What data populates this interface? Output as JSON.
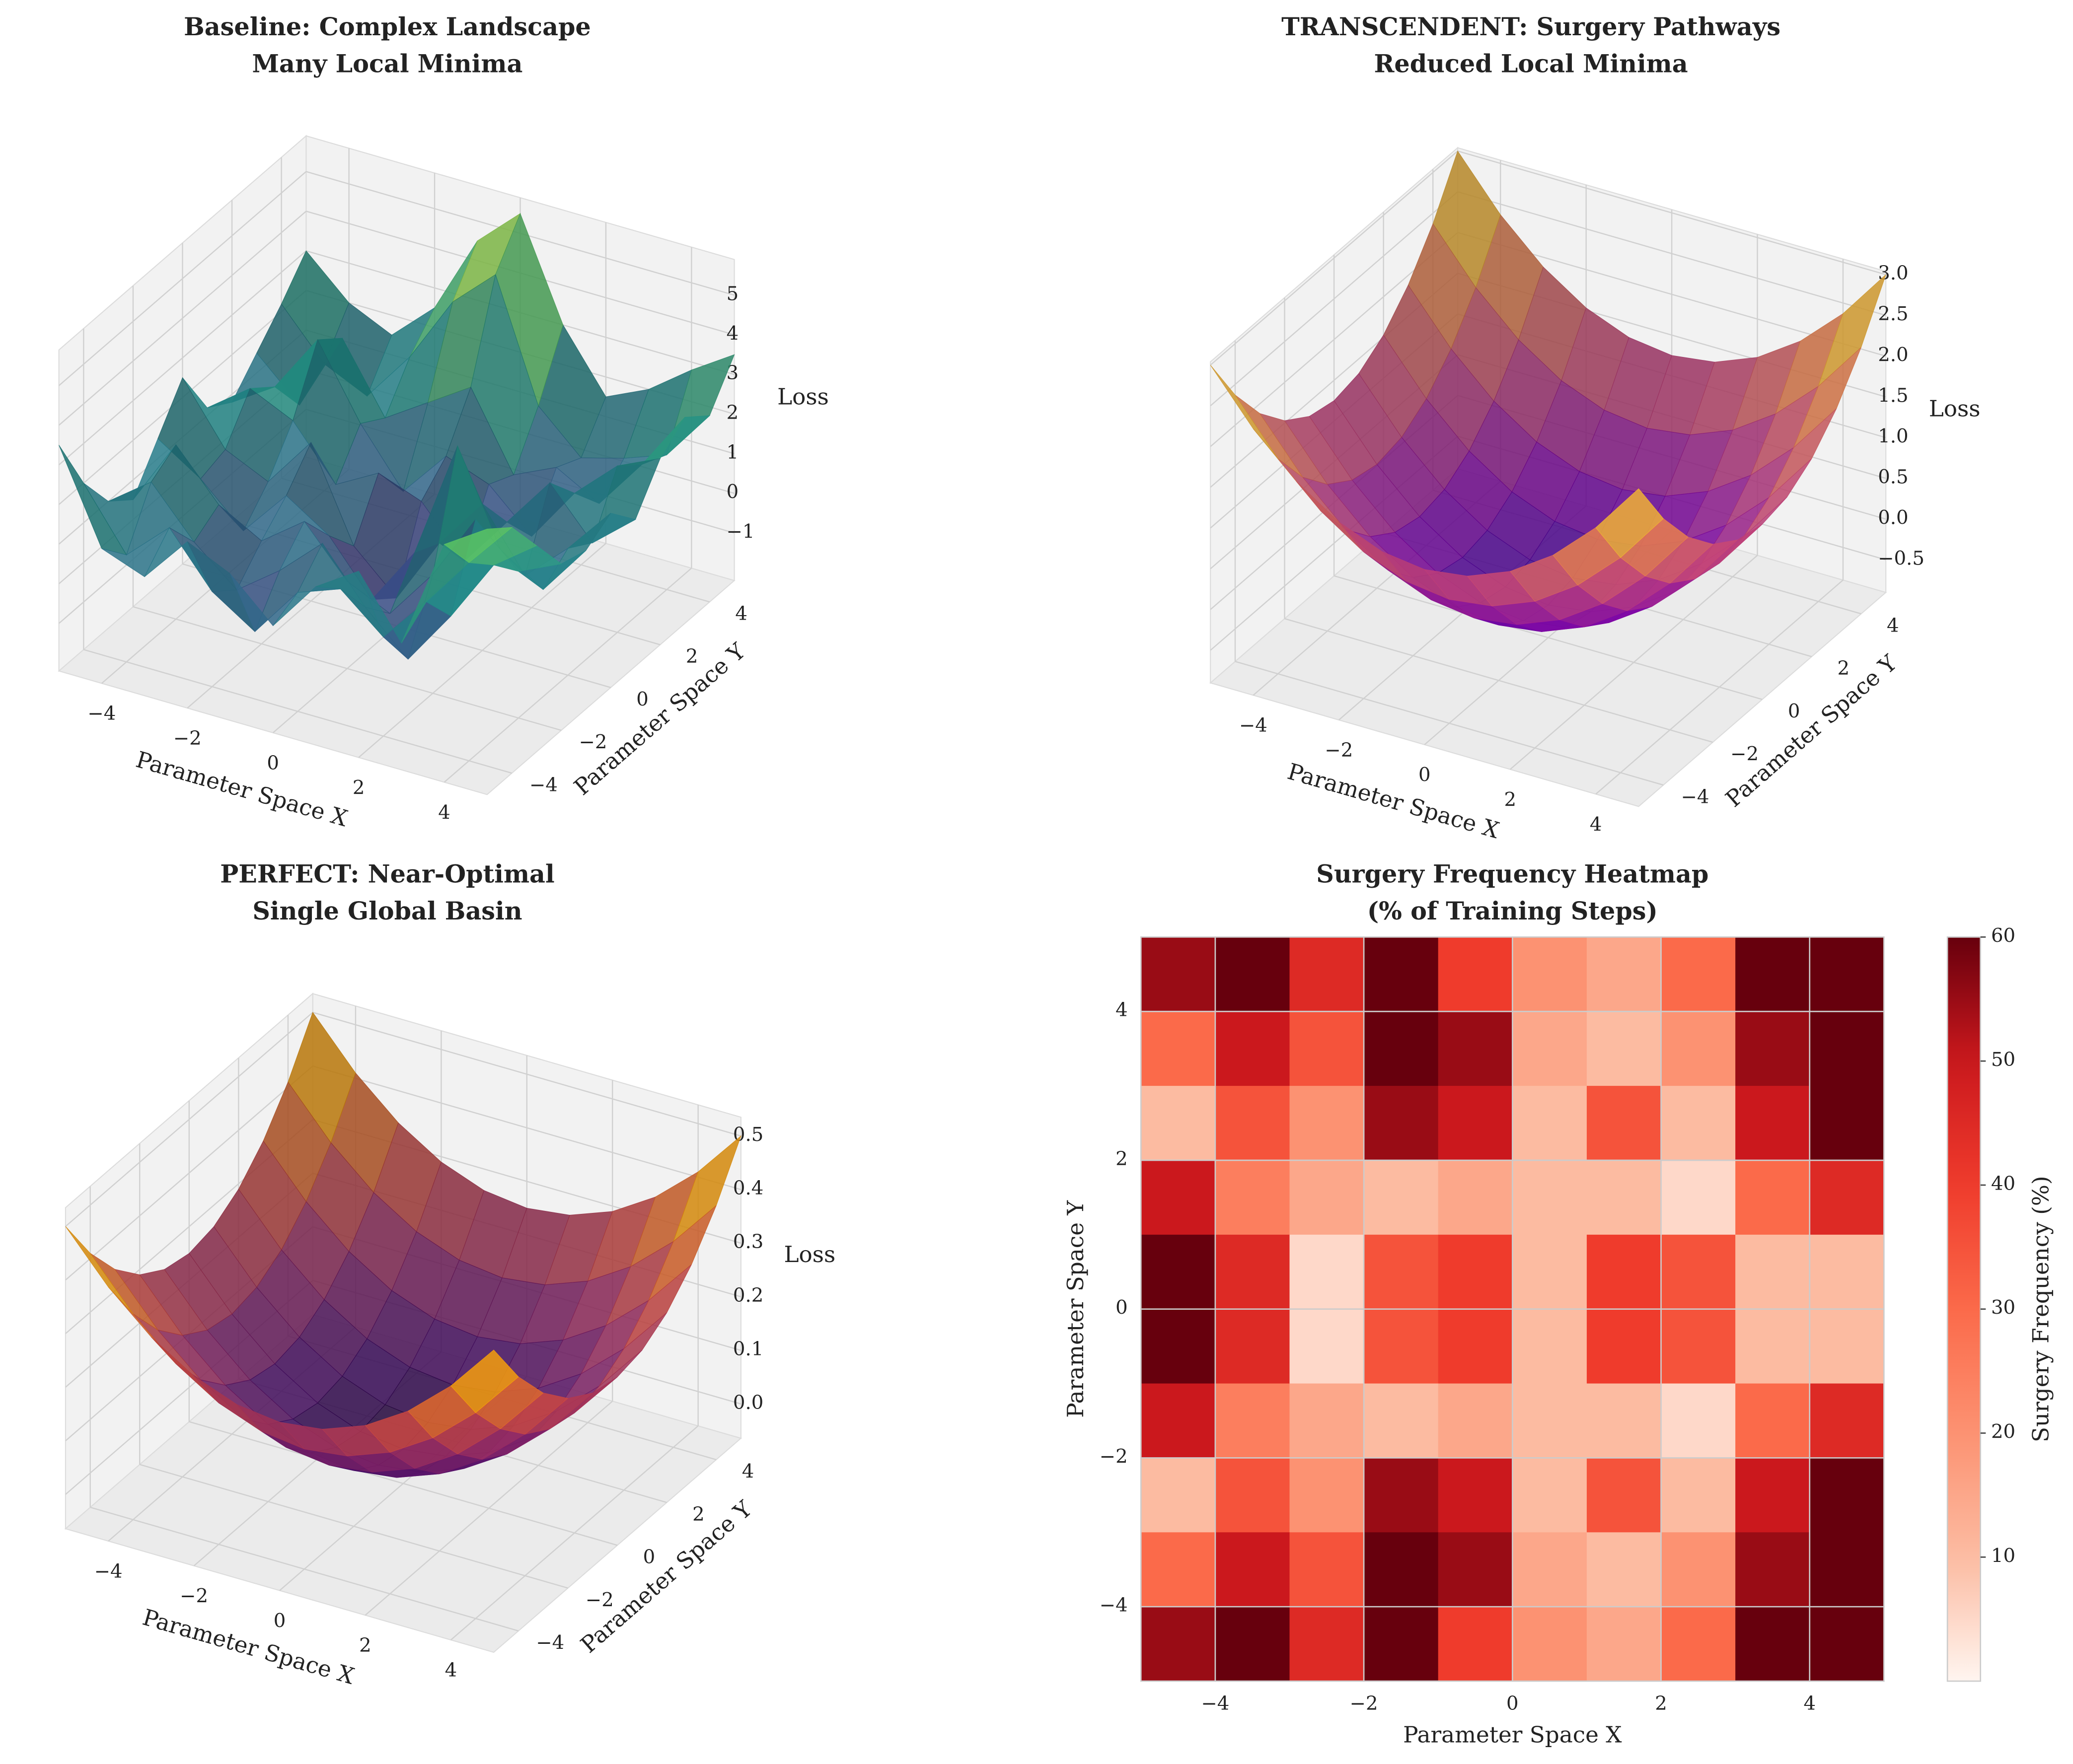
{
  "chart_data": [
    {
      "type": "surface3d",
      "title": [
        "Baseline: Complex Landscape",
        "Many Local Minima"
      ],
      "xlabel": "Parameter Space X",
      "ylabel": "Parameter Space Y",
      "zlabel": "Loss",
      "colormap": "viridis",
      "x": [
        -5,
        -4,
        -3,
        -2,
        -1,
        0,
        1,
        2,
        3,
        4,
        5
      ],
      "y": [
        -5,
        -4,
        -3,
        -2,
        -1,
        0,
        1,
        2,
        3,
        4,
        5
      ],
      "z": [
        [
          3.5,
          1.2,
          0.8,
          2.0,
          1.5,
          0.5,
          1.8,
          2.5,
          1.0,
          3.8,
          4.5
        ],
        [
          2.0,
          0.5,
          1.5,
          0.2,
          -0.5,
          0.8,
          1.2,
          0.3,
          1.5,
          2.8,
          4.0
        ],
        [
          1.0,
          1.8,
          0.6,
          -0.3,
          0.5,
          1.5,
          0.2,
          -0.8,
          0.6,
          2.2,
          3.0
        ],
        [
          0.5,
          2.2,
          1.0,
          0.4,
          1.2,
          0.0,
          -0.5,
          0.8,
          2.5,
          1.5,
          2.0
        ],
        [
          1.5,
          0.8,
          -0.2,
          1.0,
          0.3,
          -1.0,
          0.5,
          3.5,
          1.2,
          0.5,
          1.8
        ],
        [
          2.5,
          1.0,
          0.5,
          1.8,
          -0.5,
          -1.5,
          0.2,
          1.5,
          0.0,
          1.0,
          2.2
        ],
        [
          1.2,
          2.0,
          1.5,
          0.2,
          0.8,
          0.4,
          -0.8,
          0.5,
          1.8,
          0.6,
          1.5
        ],
        [
          0.8,
          1.5,
          3.0,
          1.2,
          -0.2,
          1.0,
          0.6,
          -0.4,
          1.0,
          2.0,
          2.5
        ],
        [
          1.5,
          0.5,
          2.5,
          0.8,
          1.5,
          2.2,
          0.3,
          0.8,
          0.2,
          1.5,
          3.0
        ],
        [
          2.2,
          1.0,
          0.5,
          1.8,
          3.5,
          4.5,
          1.5,
          0.5,
          0.8,
          1.2,
          2.5
        ],
        [
          3.0,
          2.0,
          1.5,
          2.5,
          4.5,
          5.5,
          3.0,
          1.5,
          2.0,
          2.8,
          3.5
        ]
      ],
      "xlim": [
        -5,
        5
      ],
      "ylim": [
        -5,
        5
      ],
      "zlim": [
        -2.2,
        5.9
      ],
      "xticks": [
        {
          "value": -4,
          "label": "−4"
        },
        {
          "value": -2,
          "label": "−2"
        },
        0,
        2,
        4
      ],
      "yticks": [
        {
          "value": -4,
          "label": "−4"
        },
        {
          "value": -2,
          "label": "−2"
        },
        0,
        2,
        4
      ],
      "zticks": [
        {
          "value": -1,
          "label": "−1"
        },
        0,
        1,
        2,
        3,
        4,
        5
      ]
    },
    {
      "type": "surface3d",
      "title": [
        "TRANSCENDENT: Surgery Pathways",
        "Reduced Local Minima"
      ],
      "xlabel": "Parameter Space X",
      "ylabel": "Parameter Space Y",
      "zlabel": "Loss",
      "colormap": "plasma",
      "x": [
        -5,
        -4,
        -3,
        -2,
        -1,
        0,
        1,
        2,
        3,
        4,
        5
      ],
      "y": [
        -5,
        -4,
        -3,
        -2,
        -1,
        0,
        1,
        2,
        3,
        4,
        5
      ],
      "z": [
        [
          3.0,
          2.37,
          1.88,
          1.53,
          1.32,
          1.25,
          1.32,
          1.53,
          1.88,
          2.37,
          3.0
        ],
        [
          2.37,
          1.74,
          1.25,
          0.9,
          0.69,
          0.62,
          0.69,
          0.9,
          1.25,
          1.74,
          2.37
        ],
        [
          1.88,
          1.25,
          0.76,
          0.41,
          0.2,
          0.13,
          0.2,
          0.41,
          0.76,
          1.25,
          1.88
        ],
        [
          1.53,
          0.9,
          0.41,
          0.06,
          -0.15,
          -0.22,
          -0.15,
          0.06,
          0.41,
          0.9,
          1.53
        ],
        [
          1.32,
          0.69,
          0.2,
          -0.15,
          -0.36,
          -0.43,
          -0.36,
          -0.15,
          0.2,
          0.69,
          1.32
        ],
        [
          1.25,
          0.62,
          0.13,
          -0.22,
          -0.43,
          -0.5,
          -0.43,
          -0.22,
          0.13,
          0.62,
          1.25
        ],
        [
          1.32,
          0.69,
          0.2,
          -0.15,
          -0.36,
          -0.43,
          -0.36,
          -0.15,
          0.2,
          0.69,
          1.32
        ],
        [
          1.53,
          0.9,
          0.41,
          0.06,
          -0.15,
          -0.22,
          -0.15,
          0.06,
          0.41,
          0.9,
          1.53
        ],
        [
          1.88,
          1.25,
          0.76,
          0.41,
          0.2,
          0.13,
          0.2,
          0.41,
          0.76,
          1.25,
          1.88
        ],
        [
          2.37,
          1.74,
          1.25,
          0.9,
          0.69,
          0.62,
          0.69,
          0.9,
          1.25,
          1.74,
          2.37
        ],
        [
          3.0,
          2.37,
          1.88,
          1.53,
          1.32,
          1.25,
          1.32,
          1.53,
          1.88,
          2.37,
          3.0
        ]
      ],
      "xlim": [
        -5,
        5
      ],
      "ylim": [
        -5,
        5
      ],
      "zlim": [
        -0.9,
        3.04
      ],
      "xticks": [
        {
          "value": -4,
          "label": "−4"
        },
        {
          "value": -2,
          "label": "−2"
        },
        0,
        2,
        4
      ],
      "yticks": [
        {
          "value": -4,
          "label": "−4"
        },
        {
          "value": -2,
          "label": "−2"
        },
        0,
        2,
        4
      ],
      "zticks": [
        {
          "value": -0.5,
          "label": "−0.5"
        },
        {
          "value": 0,
          "label": "0.0"
        },
        0.5,
        {
          "value": 1,
          "label": "1.0"
        },
        1.5,
        {
          "value": 2,
          "label": "2.0"
        },
        2.5,
        {
          "value": 3,
          "label": "3.0"
        }
      ]
    },
    {
      "type": "surface3d",
      "title": [
        "PERFECT: Near-Optimal",
        "Single Global Basin"
      ],
      "xlabel": "Parameter Space X",
      "ylabel": "Parameter Space Y",
      "zlabel": "Loss",
      "colormap": "inferno",
      "x": [
        -5,
        -4,
        -3,
        -2,
        -1,
        0,
        1,
        2,
        3,
        4,
        5
      ],
      "y": [
        -5,
        -4,
        -3,
        -2,
        -1,
        0,
        1,
        2,
        3,
        4,
        5
      ],
      "z": [
        [
          0.5,
          0.41,
          0.34,
          0.29,
          0.26,
          0.25,
          0.26,
          0.29,
          0.34,
          0.41,
          0.5
        ],
        [
          0.41,
          0.32,
          0.25,
          0.2,
          0.17,
          0.16,
          0.17,
          0.2,
          0.25,
          0.32,
          0.41
        ],
        [
          0.34,
          0.25,
          0.18,
          0.13,
          0.1,
          0.09,
          0.1,
          0.13,
          0.18,
          0.25,
          0.34
        ],
        [
          0.29,
          0.2,
          0.13,
          0.08,
          0.05,
          0.04,
          0.05,
          0.08,
          0.13,
          0.2,
          0.29
        ],
        [
          0.26,
          0.17,
          0.1,
          0.05,
          0.02,
          0.01,
          0.02,
          0.05,
          0.1,
          0.17,
          0.26
        ],
        [
          0.25,
          0.16,
          0.09,
          0.04,
          0.01,
          0,
          0.01,
          0.04,
          0.09,
          0.16,
          0.25
        ],
        [
          0.26,
          0.17,
          0.1,
          0.05,
          0.02,
          0.01,
          0.02,
          0.05,
          0.1,
          0.17,
          0.26
        ],
        [
          0.29,
          0.2,
          0.13,
          0.08,
          0.05,
          0.04,
          0.05,
          0.08,
          0.13,
          0.2,
          0.29
        ],
        [
          0.34,
          0.25,
          0.18,
          0.13,
          0.1,
          0.09,
          0.1,
          0.13,
          0.18,
          0.25,
          0.34
        ],
        [
          0.41,
          0.32,
          0.25,
          0.2,
          0.17,
          0.16,
          0.17,
          0.2,
          0.25,
          0.32,
          0.41
        ],
        [
          0.5,
          0.41,
          0.34,
          0.29,
          0.26,
          0.25,
          0.26,
          0.29,
          0.34,
          0.41,
          0.5
        ]
      ],
      "xlim": [
        -5,
        5
      ],
      "ylim": [
        -5,
        5
      ],
      "zlim": [
        -0.064,
        0.535
      ],
      "xticks": [
        {
          "value": -4,
          "label": "−4"
        },
        {
          "value": -2,
          "label": "−2"
        },
        0,
        2,
        4
      ],
      "yticks": [
        {
          "value": -4,
          "label": "−4"
        },
        {
          "value": -2,
          "label": "−2"
        },
        0,
        2,
        4
      ],
      "zticks": [
        {
          "value": 0,
          "label": "0.0"
        },
        0.1,
        0.2,
        0.3,
        0.4,
        0.5
      ]
    },
    {
      "type": "heatmap",
      "title": [
        "Surgery Frequency Heatmap",
        "(% of Training Steps)"
      ],
      "xlabel": "Parameter Space X",
      "ylabel": "Parameter Space Y",
      "colorbar_label": "Surgery Frequency (%)",
      "colormap": "Reds",
      "x": [
        -4.5,
        -3.5,
        -2.5,
        -1.5,
        -0.5,
        0.5,
        1.5,
        2.5,
        3.5,
        4.5
      ],
      "y": [
        4.5,
        3.5,
        2.5,
        1.5,
        0.5,
        -0.5,
        -1.5,
        -2.5,
        -3.5,
        -4.5
      ],
      "values": [
        [
          55,
          60,
          45,
          60,
          40,
          20,
          15,
          30,
          60,
          60
        ],
        [
          30,
          50,
          35,
          60,
          55,
          15,
          10,
          20,
          55,
          60
        ],
        [
          10,
          35,
          20,
          55,
          50,
          10,
          35,
          10,
          50,
          60
        ],
        [
          50,
          25,
          15,
          10,
          15,
          10,
          10,
          5,
          30,
          45
        ],
        [
          60,
          45,
          5,
          35,
          40,
          10,
          40,
          35,
          10,
          10
        ],
        [
          60,
          45,
          5,
          35,
          40,
          10,
          40,
          35,
          10,
          10
        ],
        [
          50,
          25,
          15,
          10,
          15,
          10,
          10,
          5,
          30,
          45
        ],
        [
          10,
          35,
          20,
          55,
          50,
          10,
          35,
          10,
          50,
          60
        ],
        [
          30,
          50,
          35,
          60,
          55,
          15,
          10,
          20,
          55,
          60
        ],
        [
          55,
          60,
          45,
          60,
          40,
          20,
          15,
          30,
          60,
          60
        ]
      ],
      "xlim": [
        -5,
        5
      ],
      "ylim": [
        -5,
        5
      ],
      "clim": [
        0,
        60
      ],
      "xticks": [
        {
          "value": -4,
          "label": "−4"
        },
        {
          "value": -2,
          "label": "−2"
        },
        0,
        2,
        4
      ],
      "yticks": [
        {
          "value": -4,
          "label": "−4"
        },
        {
          "value": -2,
          "label": "−2"
        },
        0,
        2,
        4
      ],
      "cticks": [
        10,
        20,
        30,
        40,
        50,
        60
      ],
      "grid": true
    }
  ]
}
